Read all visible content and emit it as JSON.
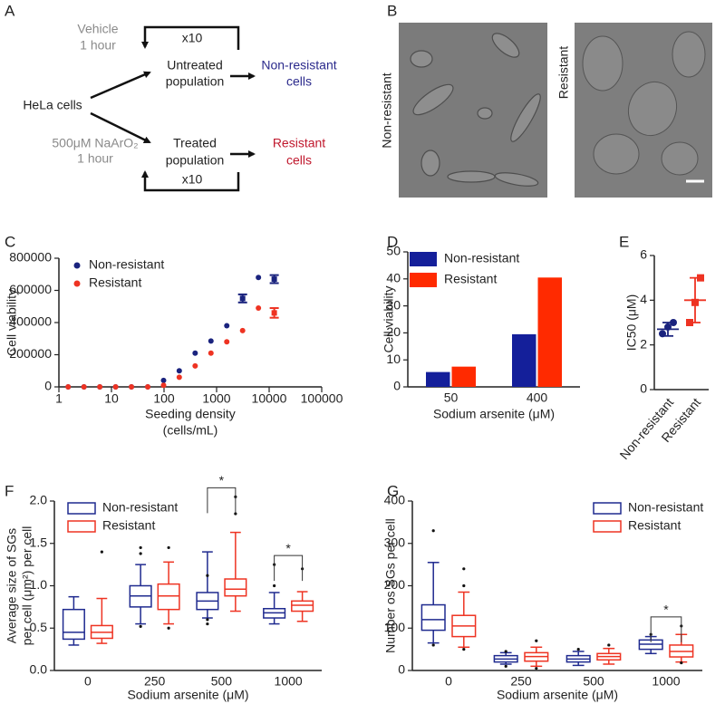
{
  "diagram": {
    "label": "A",
    "start": "HeLa cells",
    "top": {
      "condition": [
        "Vehicle",
        "1 hour"
      ],
      "population": [
        "Untreated",
        "population"
      ],
      "result": [
        "Non-resistant",
        "cells"
      ],
      "repeat": "x10"
    },
    "bottom": {
      "condition": [
        "500μM NaArO₂",
        "1 hour"
      ],
      "population": [
        "Treated",
        "population"
      ],
      "result": [
        "Resistant",
        "cells"
      ],
      "repeat": "x10"
    }
  },
  "images": {
    "label": "B",
    "panels": [
      "Non-resistant",
      "Resistant"
    ]
  },
  "chart_data": [
    {
      "type": "scatter",
      "label": "C",
      "y_label": "Cell viability",
      "x_label": [
        "Seeding density",
        "(cells/mL)"
      ],
      "log_x": true,
      "xlim": [
        1,
        100000
      ],
      "xticks": [
        1,
        10,
        100,
        1000,
        10000,
        100000
      ],
      "ylim": [
        0,
        800000
      ],
      "yticks": [
        0,
        200000,
        400000,
        600000,
        800000
      ],
      "legend": "upper left",
      "x": [
        1.5,
        3,
        6,
        12,
        24,
        49,
        98,
        195,
        391,
        781,
        1563,
        3125,
        6250,
        12500
      ],
      "series": [
        {
          "name": "Non-resistant",
          "color": "#1a237e",
          "values": [
            0,
            0,
            0,
            0,
            0,
            0,
            40000,
            100000,
            210000,
            285000,
            380000,
            550000,
            680000,
            670000
          ],
          "errors": [
            null,
            null,
            null,
            null,
            null,
            null,
            null,
            null,
            null,
            null,
            null,
            25000,
            null,
            25000
          ]
        },
        {
          "name": "Resistant",
          "color": "#ee3322",
          "values": [
            0,
            0,
            0,
            0,
            0,
            0,
            10000,
            60000,
            130000,
            210000,
            280000,
            350000,
            490000,
            460000
          ],
          "errors": [
            null,
            null,
            null,
            null,
            null,
            null,
            null,
            null,
            null,
            null,
            null,
            null,
            null,
            30000
          ]
        }
      ]
    },
    {
      "type": "bar",
      "label": "D",
      "y_label": "Cell viability",
      "x_label": "Sodium arsenite (μM)",
      "categories": [
        "50",
        "400"
      ],
      "ylim": [
        0,
        50
      ],
      "yticks": [
        0,
        10,
        20,
        30,
        40,
        50
      ],
      "legend": "upper left",
      "series": [
        {
          "name": "Non-resistant",
          "color": "#141f9a",
          "values": [
            5.5,
            19.5
          ]
        },
        {
          "name": "Resistant",
          "color": "#ff2a00",
          "values": [
            7.5,
            40.5
          ]
        }
      ]
    },
    {
      "type": "dot",
      "label": "E",
      "y_label": "IC50 (μM)",
      "categories": [
        "Non-resistant",
        "Resistant"
      ],
      "colors": [
        "#1a237e",
        "#ee3322"
      ],
      "markers": [
        "circle",
        "square"
      ],
      "ylim": [
        0,
        6
      ],
      "yticks": [
        0,
        2,
        4,
        6
      ],
      "points": [
        [
          2.5,
          2.8,
          3.0
        ],
        [
          3.0,
          3.9,
          5.0
        ]
      ],
      "mean": [
        2.7,
        4.0
      ],
      "sd": [
        0.3,
        1.0
      ]
    },
    {
      "type": "box",
      "label": "F",
      "y_label": [
        "Average size of SGs",
        "per cell (μm²) per cell"
      ],
      "x_label": "Sodium arsenite (μM)",
      "categories": [
        "0",
        "250",
        "500",
        "1000"
      ],
      "ylim": [
        0,
        2
      ],
      "yticks": [
        {
          "value": 0,
          "label": "0.0"
        },
        0.5,
        {
          "value": 1,
          "label": "1.0"
        },
        1.5,
        {
          "value": 2,
          "label": "2.0"
        }
      ],
      "legend": "upper left",
      "significance": [
        null,
        null,
        "*",
        "*"
      ],
      "series": [
        {
          "name": "Non-resistant",
          "color": "#1f2a8f",
          "boxes": [
            {
              "min": 0.3,
              "q1": 0.37,
              "median": 0.45,
              "q3": 0.72,
              "max": 0.87,
              "outliers": []
            },
            {
              "min": 0.55,
              "q1": 0.75,
              "median": 0.88,
              "q3": 1.0,
              "max": 1.25,
              "outliers": [
                1.38,
                1.45,
                0.52
              ]
            },
            {
              "min": 0.62,
              "q1": 0.72,
              "median": 0.82,
              "q3": 0.92,
              "max": 1.4,
              "outliers": [
                1.12,
                0.55,
                0.6
              ]
            },
            {
              "min": 0.55,
              "q1": 0.62,
              "median": 0.68,
              "q3": 0.73,
              "max": 0.92,
              "outliers": [
                1.0,
                1.25
              ]
            }
          ]
        },
        {
          "name": "Resistant",
          "color": "#ee3322",
          "boxes": [
            {
              "min": 0.32,
              "q1": 0.38,
              "median": 0.45,
              "q3": 0.53,
              "max": 0.85,
              "outliers": [
                1.4
              ]
            },
            {
              "min": 0.55,
              "q1": 0.72,
              "median": 0.88,
              "q3": 1.02,
              "max": 1.28,
              "outliers": [
                1.45,
                0.5
              ]
            },
            {
              "min": 0.7,
              "q1": 0.88,
              "median": 0.96,
              "q3": 1.08,
              "max": 1.63,
              "outliers": [
                2.05,
                1.85
              ]
            },
            {
              "min": 0.58,
              "q1": 0.7,
              "median": 0.77,
              "q3": 0.82,
              "max": 0.93,
              "outliers": [
                1.2
              ]
            }
          ]
        }
      ]
    },
    {
      "type": "box",
      "label": "G",
      "y_label": "Number os SGs  per cell",
      "x_label": "Sodium arsenite (μM)",
      "categories": [
        "0",
        "250",
        "500",
        "1000"
      ],
      "ylim": [
        0,
        400
      ],
      "yticks": [
        0,
        100,
        200,
        300,
        400
      ],
      "legend": "upper right",
      "significance": [
        null,
        null,
        null,
        "*"
      ],
      "series": [
        {
          "name": "Non-resistant",
          "color": "#1f2a8f",
          "boxes": [
            {
              "min": 65,
              "q1": 95,
              "median": 120,
              "q3": 155,
              "max": 255,
              "outliers": [
                330,
                60
              ]
            },
            {
              "min": 15,
              "q1": 20,
              "median": 27,
              "q3": 35,
              "max": 42,
              "outliers": [
                10,
                45
              ]
            },
            {
              "min": 12,
              "q1": 20,
              "median": 27,
              "q3": 35,
              "max": 45,
              "outliers": [
                50
              ]
            },
            {
              "min": 40,
              "q1": 50,
              "median": 62,
              "q3": 72,
              "max": 80,
              "outliers": [
                85
              ]
            }
          ]
        },
        {
          "name": "Resistant",
          "color": "#ee3322",
          "boxes": [
            {
              "min": 55,
              "q1": 80,
              "median": 105,
              "q3": 130,
              "max": 185,
              "outliers": [
                240,
                200,
                50
              ]
            },
            {
              "min": 10,
              "q1": 22,
              "median": 33,
              "q3": 42,
              "max": 55,
              "outliers": [
                70,
                5
              ]
            },
            {
              "min": 15,
              "q1": 25,
              "median": 33,
              "q3": 40,
              "max": 52,
              "outliers": [
                60
              ]
            },
            {
              "min": 20,
              "q1": 32,
              "median": 45,
              "q3": 60,
              "max": 85,
              "outliers": [
                105,
                18
              ]
            }
          ]
        }
      ]
    }
  ]
}
